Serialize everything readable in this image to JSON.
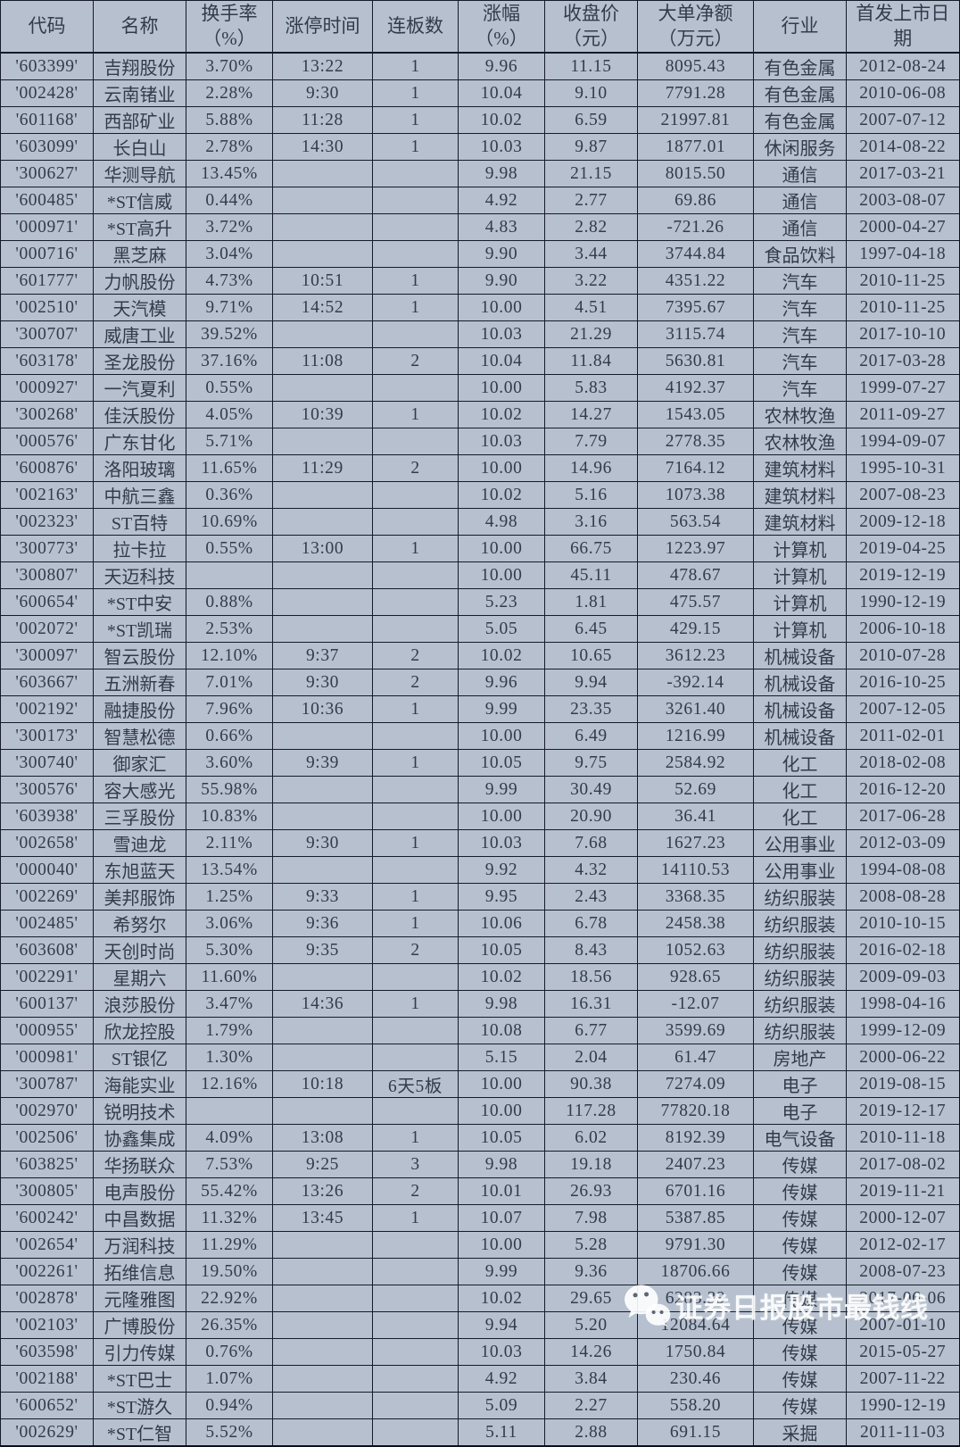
{
  "colors": {
    "background": "#b6c0ce",
    "text": "#333b4a",
    "grid": "#161b28",
    "watermark_text": "#ffffff"
  },
  "watermark": {
    "icon": "wechat-icon",
    "text": "证券日报股市最钱线"
  },
  "table": {
    "headers": [
      {
        "key": "code",
        "lines": [
          "代码"
        ]
      },
      {
        "key": "name",
        "lines": [
          "名称"
        ]
      },
      {
        "key": "turnover",
        "lines": [
          "换手率",
          "（%）"
        ]
      },
      {
        "key": "limit_time",
        "lines": [
          "涨停时间"
        ]
      },
      {
        "key": "boards",
        "lines": [
          "连板数"
        ]
      },
      {
        "key": "change",
        "lines": [
          "涨幅",
          "（%）"
        ]
      },
      {
        "key": "close",
        "lines": [
          "收盘价",
          "（元）"
        ]
      },
      {
        "key": "net",
        "lines": [
          "大单净额",
          "（万元）"
        ]
      },
      {
        "key": "industry",
        "lines": [
          "行业"
        ]
      },
      {
        "key": "ipo",
        "lines": [
          "首发上市日",
          "期"
        ]
      }
    ],
    "rows": [
      {
        "code": "'603399'",
        "name": "吉翔股份",
        "turnover": "3.70%",
        "limit_time": "13:22",
        "boards": "1",
        "change": "9.96",
        "close": "11.15",
        "net": "8095.43",
        "industry": "有色金属",
        "ipo": "2012-08-24"
      },
      {
        "code": "'002428'",
        "name": "云南锗业",
        "turnover": "2.28%",
        "limit_time": "9:30",
        "boards": "1",
        "change": "10.04",
        "close": "9.10",
        "net": "7791.28",
        "industry": "有色金属",
        "ipo": "2010-06-08"
      },
      {
        "code": "'601168'",
        "name": "西部矿业",
        "turnover": "5.88%",
        "limit_time": "11:28",
        "boards": "1",
        "change": "10.02",
        "close": "6.59",
        "net": "21997.81",
        "industry": "有色金属",
        "ipo": "2007-07-12"
      },
      {
        "code": "'603099'",
        "name": "长白山",
        "turnover": "2.78%",
        "limit_time": "14:30",
        "boards": "1",
        "change": "10.03",
        "close": "9.87",
        "net": "1877.01",
        "industry": "休闲服务",
        "ipo": "2014-08-22"
      },
      {
        "code": "'300627'",
        "name": "华测导航",
        "turnover": "13.45%",
        "limit_time": "",
        "boards": "",
        "change": "9.98",
        "close": "21.15",
        "net": "8015.50",
        "industry": "通信",
        "ipo": "2017-03-21"
      },
      {
        "code": "'600485'",
        "name": "*ST信威",
        "turnover": "0.44%",
        "limit_time": "",
        "boards": "",
        "change": "4.92",
        "close": "2.77",
        "net": "69.86",
        "industry": "通信",
        "ipo": "2003-08-07"
      },
      {
        "code": "'000971'",
        "name": "*ST高升",
        "turnover": "3.72%",
        "limit_time": "",
        "boards": "",
        "change": "4.83",
        "close": "2.82",
        "net": "-721.26",
        "industry": "通信",
        "ipo": "2000-04-27"
      },
      {
        "code": "'000716'",
        "name": "黑芝麻",
        "turnover": "3.04%",
        "limit_time": "",
        "boards": "",
        "change": "9.90",
        "close": "3.44",
        "net": "3744.84",
        "industry": "食品饮料",
        "ipo": "1997-04-18"
      },
      {
        "code": "'601777'",
        "name": "力帆股份",
        "turnover": "4.73%",
        "limit_time": "10:51",
        "boards": "1",
        "change": "9.90",
        "close": "3.22",
        "net": "4351.22",
        "industry": "汽车",
        "ipo": "2010-11-25"
      },
      {
        "code": "'002510'",
        "name": "天汽模",
        "turnover": "9.71%",
        "limit_time": "14:52",
        "boards": "1",
        "change": "10.00",
        "close": "4.51",
        "net": "7395.67",
        "industry": "汽车",
        "ipo": "2010-11-25"
      },
      {
        "code": "'300707'",
        "name": "威唐工业",
        "turnover": "39.52%",
        "limit_time": "",
        "boards": "",
        "change": "10.03",
        "close": "21.29",
        "net": "3115.74",
        "industry": "汽车",
        "ipo": "2017-10-10"
      },
      {
        "code": "'603178'",
        "name": "圣龙股份",
        "turnover": "37.16%",
        "limit_time": "11:08",
        "boards": "2",
        "change": "10.04",
        "close": "11.84",
        "net": "5630.81",
        "industry": "汽车",
        "ipo": "2017-03-28"
      },
      {
        "code": "'000927'",
        "name": "一汽夏利",
        "turnover": "0.55%",
        "limit_time": "",
        "boards": "",
        "change": "10.00",
        "close": "5.83",
        "net": "4192.37",
        "industry": "汽车",
        "ipo": "1999-07-27"
      },
      {
        "code": "'300268'",
        "name": "佳沃股份",
        "turnover": "4.05%",
        "limit_time": "10:39",
        "boards": "1",
        "change": "10.02",
        "close": "14.27",
        "net": "1543.05",
        "industry": "农林牧渔",
        "ipo": "2011-09-27"
      },
      {
        "code": "'000576'",
        "name": "广东甘化",
        "turnover": "5.71%",
        "limit_time": "",
        "boards": "",
        "change": "10.03",
        "close": "7.79",
        "net": "2778.35",
        "industry": "农林牧渔",
        "ipo": "1994-09-07"
      },
      {
        "code": "'600876'",
        "name": "洛阳玻璃",
        "turnover": "11.65%",
        "limit_time": "11:29",
        "boards": "2",
        "change": "10.00",
        "close": "14.96",
        "net": "7164.12",
        "industry": "建筑材料",
        "ipo": "1995-10-31"
      },
      {
        "code": "'002163'",
        "name": "中航三鑫",
        "turnover": "0.36%",
        "limit_time": "",
        "boards": "",
        "change": "10.02",
        "close": "5.16",
        "net": "1073.38",
        "industry": "建筑材料",
        "ipo": "2007-08-23"
      },
      {
        "code": "'002323'",
        "name": "ST百特",
        "turnover": "10.69%",
        "limit_time": "",
        "boards": "",
        "change": "4.98",
        "close": "3.16",
        "net": "563.54",
        "industry": "建筑材料",
        "ipo": "2009-12-18"
      },
      {
        "code": "'300773'",
        "name": "拉卡拉",
        "turnover": "0.55%",
        "limit_time": "13:00",
        "boards": "1",
        "change": "10.00",
        "close": "66.75",
        "net": "1223.97",
        "industry": "计算机",
        "ipo": "2019-04-25"
      },
      {
        "code": "'300807'",
        "name": "天迈科技",
        "turnover": "",
        "limit_time": "",
        "boards": "",
        "change": "10.00",
        "close": "45.11",
        "net": "478.67",
        "industry": "计算机",
        "ipo": "2019-12-19"
      },
      {
        "code": "'600654'",
        "name": "*ST中安",
        "turnover": "0.88%",
        "limit_time": "",
        "boards": "",
        "change": "5.23",
        "close": "1.81",
        "net": "475.57",
        "industry": "计算机",
        "ipo": "1990-12-19"
      },
      {
        "code": "'002072'",
        "name": "*ST凯瑞",
        "turnover": "2.53%",
        "limit_time": "",
        "boards": "",
        "change": "5.05",
        "close": "6.45",
        "net": "429.15",
        "industry": "计算机",
        "ipo": "2006-10-18"
      },
      {
        "code": "'300097'",
        "name": "智云股份",
        "turnover": "12.10%",
        "limit_time": "9:37",
        "boards": "2",
        "change": "10.02",
        "close": "10.65",
        "net": "3612.23",
        "industry": "机械设备",
        "ipo": "2010-07-28"
      },
      {
        "code": "'603667'",
        "name": "五洲新春",
        "turnover": "7.01%",
        "limit_time": "9:30",
        "boards": "2",
        "change": "9.96",
        "close": "9.94",
        "net": "-392.14",
        "industry": "机械设备",
        "ipo": "2016-10-25"
      },
      {
        "code": "'002192'",
        "name": "融捷股份",
        "turnover": "7.96%",
        "limit_time": "10:36",
        "boards": "1",
        "change": "9.99",
        "close": "23.35",
        "net": "3261.40",
        "industry": "机械设备",
        "ipo": "2007-12-05"
      },
      {
        "code": "'300173'",
        "name": "智慧松德",
        "turnover": "0.66%",
        "limit_time": "",
        "boards": "",
        "change": "10.00",
        "close": "6.49",
        "net": "1216.99",
        "industry": "机械设备",
        "ipo": "2011-02-01"
      },
      {
        "code": "'300740'",
        "name": "御家汇",
        "turnover": "3.60%",
        "limit_time": "9:39",
        "boards": "1",
        "change": "10.05",
        "close": "9.75",
        "net": "2584.92",
        "industry": "化工",
        "ipo": "2018-02-08"
      },
      {
        "code": "'300576'",
        "name": "容大感光",
        "turnover": "55.98%",
        "limit_time": "",
        "boards": "",
        "change": "9.99",
        "close": "30.49",
        "net": "52.69",
        "industry": "化工",
        "ipo": "2016-12-20"
      },
      {
        "code": "'603938'",
        "name": "三孚股份",
        "turnover": "10.83%",
        "limit_time": "",
        "boards": "",
        "change": "10.00",
        "close": "20.90",
        "net": "36.41",
        "industry": "化工",
        "ipo": "2017-06-28"
      },
      {
        "code": "'002658'",
        "name": "雪迪龙",
        "turnover": "2.11%",
        "limit_time": "9:30",
        "boards": "1",
        "change": "10.03",
        "close": "7.68",
        "net": "1627.23",
        "industry": "公用事业",
        "ipo": "2012-03-09"
      },
      {
        "code": "'000040'",
        "name": "东旭蓝天",
        "turnover": "13.54%",
        "limit_time": "",
        "boards": "",
        "change": "9.92",
        "close": "4.32",
        "net": "14110.53",
        "industry": "公用事业",
        "ipo": "1994-08-08"
      },
      {
        "code": "'002269'",
        "name": "美邦服饰",
        "turnover": "1.25%",
        "limit_time": "9:33",
        "boards": "1",
        "change": "9.95",
        "close": "2.43",
        "net": "3368.35",
        "industry": "纺织服装",
        "ipo": "2008-08-28"
      },
      {
        "code": "'002485'",
        "name": "希努尔",
        "turnover": "3.06%",
        "limit_time": "9:36",
        "boards": "1",
        "change": "10.06",
        "close": "6.78",
        "net": "2458.38",
        "industry": "纺织服装",
        "ipo": "2010-10-15"
      },
      {
        "code": "'603608'",
        "name": "天创时尚",
        "turnover": "5.30%",
        "limit_time": "9:35",
        "boards": "2",
        "change": "10.05",
        "close": "8.43",
        "net": "1052.63",
        "industry": "纺织服装",
        "ipo": "2016-02-18"
      },
      {
        "code": "'002291'",
        "name": "星期六",
        "turnover": "11.60%",
        "limit_time": "",
        "boards": "",
        "change": "10.02",
        "close": "18.56",
        "net": "928.65",
        "industry": "纺织服装",
        "ipo": "2009-09-03"
      },
      {
        "code": "'600137'",
        "name": "浪莎股份",
        "turnover": "3.47%",
        "limit_time": "14:36",
        "boards": "1",
        "change": "9.98",
        "close": "16.31",
        "net": "-12.07",
        "industry": "纺织服装",
        "ipo": "1998-04-16"
      },
      {
        "code": "'000955'",
        "name": "欣龙控股",
        "turnover": "1.79%",
        "limit_time": "",
        "boards": "",
        "change": "10.08",
        "close": "6.77",
        "net": "3599.69",
        "industry": "纺织服装",
        "ipo": "1999-12-09"
      },
      {
        "code": "'000981'",
        "name": "ST银亿",
        "turnover": "1.30%",
        "limit_time": "",
        "boards": "",
        "change": "5.15",
        "close": "2.04",
        "net": "61.47",
        "industry": "房地产",
        "ipo": "2000-06-22"
      },
      {
        "code": "'300787'",
        "name": "海能实业",
        "turnover": "12.16%",
        "limit_time": "10:18",
        "boards": "6天5板",
        "change": "10.00",
        "close": "90.38",
        "net": "7274.09",
        "industry": "电子",
        "ipo": "2019-08-15"
      },
      {
        "code": "'002970'",
        "name": "锐明技术",
        "turnover": "",
        "limit_time": "",
        "boards": "",
        "change": "10.00",
        "close": "117.28",
        "net": "77820.18",
        "industry": "电子",
        "ipo": "2019-12-17"
      },
      {
        "code": "'002506'",
        "name": "协鑫集成",
        "turnover": "4.09%",
        "limit_time": "13:08",
        "boards": "1",
        "change": "10.05",
        "close": "6.02",
        "net": "8192.39",
        "industry": "电气设备",
        "ipo": "2010-11-18"
      },
      {
        "code": "'603825'",
        "name": "华扬联众",
        "turnover": "7.53%",
        "limit_time": "9:25",
        "boards": "3",
        "change": "9.98",
        "close": "19.18",
        "net": "2407.23",
        "industry": "传媒",
        "ipo": "2017-08-02"
      },
      {
        "code": "'300805'",
        "name": "电声股份",
        "turnover": "55.42%",
        "limit_time": "13:26",
        "boards": "2",
        "change": "10.01",
        "close": "26.93",
        "net": "6701.16",
        "industry": "传媒",
        "ipo": "2019-11-21"
      },
      {
        "code": "'600242'",
        "name": "中昌数据",
        "turnover": "11.32%",
        "limit_time": "13:45",
        "boards": "1",
        "change": "10.07",
        "close": "7.98",
        "net": "5387.85",
        "industry": "传媒",
        "ipo": "2000-12-07"
      },
      {
        "code": "'002654'",
        "name": "万润科技",
        "turnover": "11.29%",
        "limit_time": "",
        "boards": "",
        "change": "10.00",
        "close": "5.28",
        "net": "9791.30",
        "industry": "传媒",
        "ipo": "2012-02-17"
      },
      {
        "code": "'002261'",
        "name": "拓维信息",
        "turnover": "19.50%",
        "limit_time": "",
        "boards": "",
        "change": "9.99",
        "close": "9.36",
        "net": "18706.66",
        "industry": "传媒",
        "ipo": "2008-07-23"
      },
      {
        "code": "'002878'",
        "name": "元隆雅图",
        "turnover": "22.92%",
        "limit_time": "",
        "boards": "",
        "change": "10.02",
        "close": "29.65",
        "net": "6283.39",
        "industry": "传媒",
        "ipo": "2017-06-06"
      },
      {
        "code": "'002103'",
        "name": "广博股份",
        "turnover": "26.35%",
        "limit_time": "",
        "boards": "",
        "change": "9.94",
        "close": "5.20",
        "net": "12084.64",
        "industry": "传媒",
        "ipo": "2007-01-10"
      },
      {
        "code": "'603598'",
        "name": "引力传媒",
        "turnover": "0.76%",
        "limit_time": "",
        "boards": "",
        "change": "10.03",
        "close": "14.26",
        "net": "1750.84",
        "industry": "传媒",
        "ipo": "2015-05-27"
      },
      {
        "code": "'002188'",
        "name": "*ST巴士",
        "turnover": "1.07%",
        "limit_time": "",
        "boards": "",
        "change": "4.92",
        "close": "3.84",
        "net": "230.46",
        "industry": "传媒",
        "ipo": "2007-11-22"
      },
      {
        "code": "'600652'",
        "name": "*ST游久",
        "turnover": "0.94%",
        "limit_time": "",
        "boards": "",
        "change": "5.09",
        "close": "2.27",
        "net": "558.20",
        "industry": "传媒",
        "ipo": "1990-12-19"
      },
      {
        "code": "'002629'",
        "name": "*ST仁智",
        "turnover": "5.52%",
        "limit_time": "",
        "boards": "",
        "change": "5.11",
        "close": "2.88",
        "net": "691.15",
        "industry": "采掘",
        "ipo": "2011-11-03"
      }
    ]
  }
}
